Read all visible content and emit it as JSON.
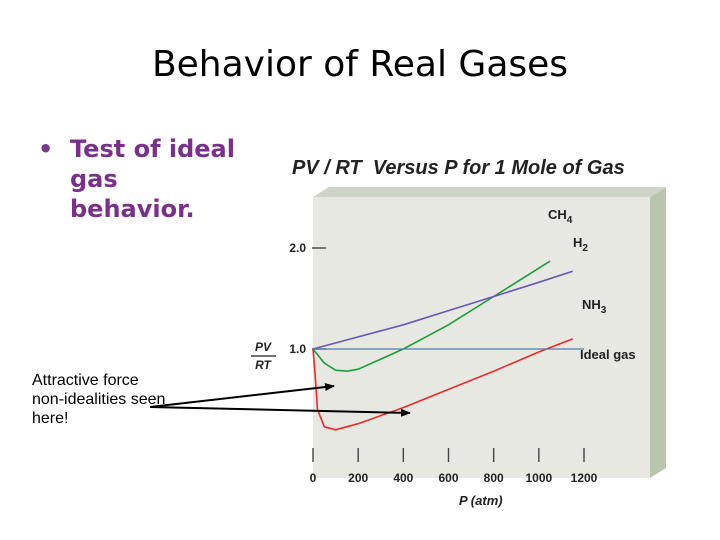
{
  "slide": {
    "title": "Behavior of Real Gases",
    "bullet": "Test of ideal gas behavior.",
    "annotation": "Attractive force non-idealities seen here!"
  },
  "colors": {
    "bullet_text": "#7a2f8c",
    "plot_background": "#e6e8e1",
    "ch4": "#1b9e3a",
    "h2": "#6a55b8",
    "nh3": "#ea2a2a",
    "ideal": "#4f7fb0"
  },
  "chart_data": {
    "type": "line",
    "title": "PV / RT  Versus P for 1 Mole of Gas",
    "xlabel": "P (atm)",
    "ylabel_numerator": "PV",
    "ylabel_denominator": "RT",
    "xlim": [
      0,
      1200
    ],
    "ylim": [
      0,
      2.0
    ],
    "x_ticks": [
      0,
      200,
      400,
      600,
      800,
      1000,
      1200
    ],
    "y_ticks": [
      1.0,
      2.0
    ],
    "y_tick_labels": [
      "1.0",
      "2.0"
    ],
    "grid": false,
    "legend": "inline labels at right end of each curve",
    "series": [
      {
        "name": "CH4",
        "label_main": "CH",
        "label_sub": "4",
        "color_key": "ch4",
        "x": [
          0,
          50,
          100,
          150,
          200,
          300,
          400,
          500,
          600,
          800,
          1000,
          1050
        ],
        "y": [
          1.0,
          0.86,
          0.79,
          0.78,
          0.8,
          0.9,
          1.0,
          1.12,
          1.24,
          1.52,
          1.8,
          1.87
        ]
      },
      {
        "name": "H2",
        "label_main": "H",
        "label_sub": "2",
        "color_key": "h2",
        "x": [
          0,
          200,
          400,
          600,
          800,
          1000,
          1150
        ],
        "y": [
          1.0,
          1.12,
          1.24,
          1.38,
          1.52,
          1.66,
          1.77
        ]
      },
      {
        "name": "NH3",
        "label_main": "NH",
        "label_sub": "3",
        "color_key": "nh3",
        "x": [
          0,
          10,
          20,
          50,
          100,
          200,
          400,
          600,
          800,
          1000,
          1150
        ],
        "y": [
          1.0,
          0.72,
          0.4,
          0.23,
          0.2,
          0.26,
          0.42,
          0.6,
          0.78,
          0.97,
          1.1
        ]
      },
      {
        "name": "Ideal gas",
        "label_main": "Ideal gas",
        "label_sub": "",
        "color_key": "ideal",
        "x": [
          0,
          1200
        ],
        "y": [
          1.0,
          1.0
        ]
      }
    ]
  }
}
